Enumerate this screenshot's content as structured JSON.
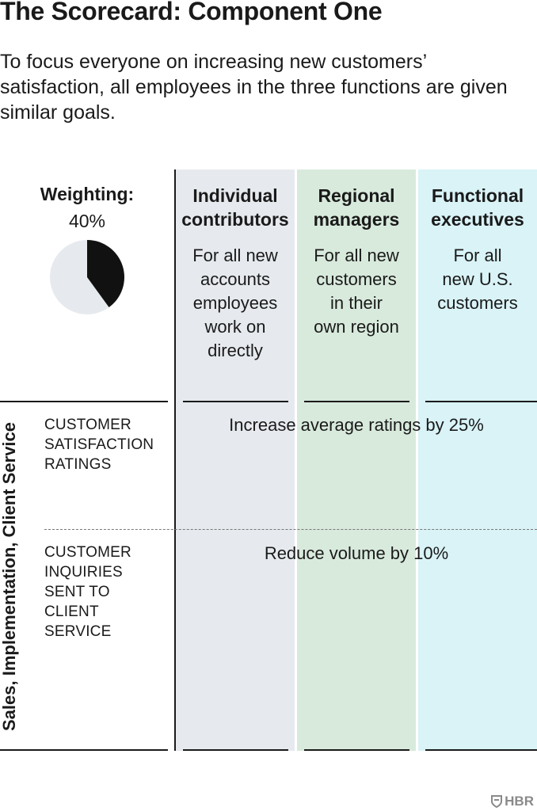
{
  "title": "The Scorecard: Component One",
  "subtitle": "To focus everyone on increasing new customers’ satisfaction, all employees in the three functions are given similar goals.",
  "weighting": {
    "label": "Weighting:",
    "value": "40%",
    "fraction": 0.4,
    "colors": {
      "share": "#111111",
      "rest": "#e6eaee"
    }
  },
  "columns": [
    {
      "heading_line1": "Individual",
      "heading_line2": "contributors",
      "desc": [
        "For all new",
        "accounts",
        "employees",
        "work on",
        "directly"
      ],
      "color": "#e6eaee"
    },
    {
      "heading_line1": "Regional",
      "heading_line2": "managers",
      "desc": [
        "For all new",
        "customers",
        "in their",
        "own region"
      ],
      "color": "#d8eadc"
    },
    {
      "heading_line1": "Functional",
      "heading_line2": "executives",
      "desc": [
        "For all",
        "new U.S.",
        "customers"
      ],
      "color": "#d9f3f7"
    }
  ],
  "side_label": "Sales, Implementation, Client Service",
  "rows": [
    {
      "metric": [
        "CUSTOMER",
        "SATISFACTION",
        "RATINGS"
      ],
      "goal": "Increase average ratings by 25%"
    },
    {
      "metric": [
        "CUSTOMER",
        "INQUIRIES",
        "SENT TO",
        "CLIENT",
        "SERVICE"
      ],
      "goal": "Reduce volume by 10%"
    }
  ],
  "brand": {
    "name": "HBR",
    "icon": "hbr-shield-icon"
  }
}
